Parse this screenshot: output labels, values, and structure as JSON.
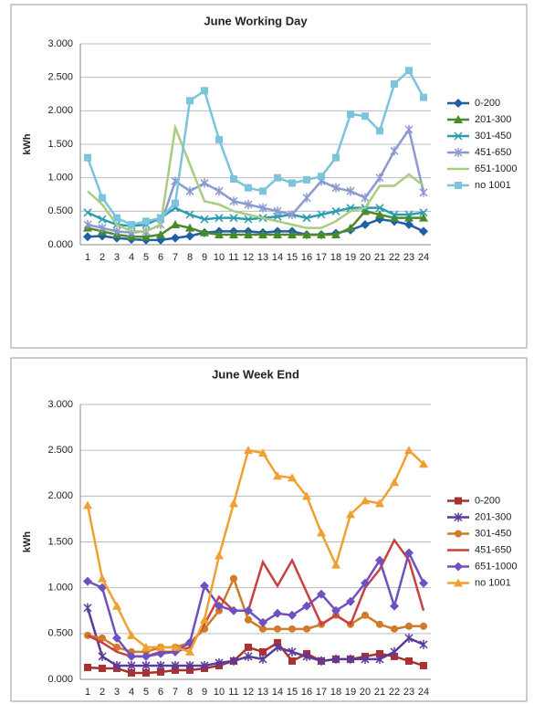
{
  "chart_data": [
    {
      "type": "line",
      "title": "June Working Day",
      "y_label": "kWh",
      "categories": [
        "1",
        "2",
        "3",
        "4",
        "5",
        "6",
        "7",
        "8",
        "9",
        "10",
        "11",
        "12",
        "13",
        "14",
        "15",
        "16",
        "17",
        "18",
        "19",
        "20",
        "21",
        "22",
        "23",
        "24"
      ],
      "ylim": [
        0,
        3
      ],
      "yticks": [
        {
          "value": 0,
          "label": "0.000"
        },
        {
          "value": 0.5,
          "label": "0.500"
        },
        {
          "value": 1,
          "label": "1.000"
        },
        {
          "value": 1.5,
          "label": "1.500"
        },
        {
          "value": 2,
          "label": "2.000"
        },
        {
          "value": 2.5,
          "label": "2.500"
        },
        {
          "value": 3,
          "label": "3.000"
        }
      ],
      "grid": true,
      "legend": "right",
      "series": [
        {
          "name": "0-200",
          "color": "#1f5fa6",
          "marker": "diamond",
          "values": [
            0.12,
            0.13,
            0.1,
            0.08,
            0.07,
            0.07,
            0.1,
            0.13,
            0.18,
            0.2,
            0.2,
            0.2,
            0.18,
            0.2,
            0.2,
            0.15,
            0.15,
            0.17,
            0.22,
            0.3,
            0.38,
            0.35,
            0.3,
            0.2
          ]
        },
        {
          "name": "201-300",
          "color": "#4a8a2a",
          "marker": "triangle",
          "values": [
            0.25,
            0.2,
            0.15,
            0.12,
            0.12,
            0.15,
            0.3,
            0.25,
            0.18,
            0.15,
            0.15,
            0.15,
            0.15,
            0.15,
            0.15,
            0.15,
            0.15,
            0.15,
            0.25,
            0.5,
            0.45,
            0.4,
            0.4,
            0.4
          ]
        },
        {
          "name": "301-450",
          "color": "#2a9bb0",
          "marker": "asterisk",
          "values": [
            0.48,
            0.38,
            0.3,
            0.28,
            0.3,
            0.4,
            0.55,
            0.45,
            0.38,
            0.4,
            0.4,
            0.38,
            0.4,
            0.42,
            0.45,
            0.4,
            0.45,
            0.5,
            0.55,
            0.55,
            0.55,
            0.45,
            0.45,
            0.48
          ]
        },
        {
          "name": "451-650",
          "color": "#8a9ad0",
          "marker": "star",
          "values": [
            0.3,
            0.25,
            0.2,
            0.18,
            0.2,
            0.3,
            0.95,
            0.8,
            0.92,
            0.8,
            0.65,
            0.6,
            0.55,
            0.5,
            0.45,
            0.7,
            0.95,
            0.85,
            0.8,
            0.7,
            1.0,
            1.4,
            1.72,
            0.78
          ]
        },
        {
          "name": "651-1000",
          "color": "#a8cc80",
          "marker": "none",
          "values": [
            0.8,
            0.6,
            0.3,
            0.2,
            0.2,
            0.3,
            1.75,
            1.2,
            0.65,
            0.6,
            0.5,
            0.45,
            0.4,
            0.35,
            0.3,
            0.25,
            0.25,
            0.35,
            0.5,
            0.55,
            0.88,
            0.88,
            1.05,
            0.88
          ]
        },
        {
          "name": "no 1001",
          "color": "#7cc3dc",
          "marker": "square",
          "values": [
            1.3,
            0.7,
            0.4,
            0.3,
            0.35,
            0.4,
            0.62,
            2.15,
            2.3,
            1.57,
            0.98,
            0.85,
            0.8,
            1.0,
            0.92,
            0.97,
            1.02,
            1.3,
            1.95,
            1.92,
            1.7,
            2.4,
            2.6,
            2.2
          ]
        }
      ]
    },
    {
      "type": "line",
      "title": "June Week End",
      "y_label": "kWh",
      "categories": [
        "1",
        "2",
        "3",
        "4",
        "5",
        "6",
        "7",
        "8",
        "9",
        "10",
        "11",
        "12",
        "13",
        "14",
        "15",
        "16",
        "17",
        "18",
        "19",
        "20",
        "21",
        "22",
        "23",
        "24"
      ],
      "ylim": [
        0,
        3
      ],
      "yticks": [
        {
          "value": 0,
          "label": "0.000"
        },
        {
          "value": 0.5,
          "label": "0.500"
        },
        {
          "value": 1,
          "label": "1.000"
        },
        {
          "value": 1.5,
          "label": "1.500"
        },
        {
          "value": 2,
          "label": "2.000"
        },
        {
          "value": 2.5,
          "label": "2.500"
        },
        {
          "value": 3,
          "label": "3.000"
        }
      ],
      "grid": true,
      "legend": "right",
      "series": [
        {
          "name": "0-200",
          "color": "#a83232",
          "marker": "square",
          "values": [
            0.13,
            0.12,
            0.12,
            0.07,
            0.07,
            0.08,
            0.1,
            0.1,
            0.12,
            0.15,
            0.2,
            0.35,
            0.3,
            0.4,
            0.2,
            0.28,
            0.2,
            0.22,
            0.22,
            0.25,
            0.28,
            0.25,
            0.2,
            0.15
          ]
        },
        {
          "name": "201-300",
          "color": "#5a3a9a",
          "marker": "star",
          "values": [
            0.78,
            0.25,
            0.15,
            0.15,
            0.15,
            0.15,
            0.15,
            0.15,
            0.15,
            0.18,
            0.2,
            0.25,
            0.22,
            0.35,
            0.3,
            0.25,
            0.2,
            0.22,
            0.22,
            0.22,
            0.22,
            0.3,
            0.45,
            0.38
          ]
        },
        {
          "name": "301-450",
          "color": "#d07a2a",
          "marker": "circle",
          "values": [
            0.48,
            0.45,
            0.35,
            0.3,
            0.3,
            0.35,
            0.35,
            0.4,
            0.55,
            0.75,
            1.1,
            0.65,
            0.55,
            0.55,
            0.55,
            0.55,
            0.6,
            0.7,
            0.6,
            0.7,
            0.6,
            0.55,
            0.58,
            0.58
          ]
        },
        {
          "name": "451-650",
          "color": "#c84040",
          "marker": "none",
          "values": [
            0.48,
            0.4,
            0.3,
            0.25,
            0.25,
            0.3,
            0.3,
            0.35,
            0.6,
            0.9,
            0.75,
            0.75,
            1.28,
            1.02,
            1.3,
            0.95,
            0.6,
            0.7,
            0.6,
            1.0,
            1.2,
            1.52,
            1.3,
            0.75
          ]
        },
        {
          "name": "651-1000",
          "color": "#7050c0",
          "marker": "diamond",
          "values": [
            1.07,
            1.0,
            0.45,
            0.25,
            0.25,
            0.28,
            0.3,
            0.4,
            1.02,
            0.8,
            0.75,
            0.75,
            0.62,
            0.72,
            0.7,
            0.8,
            0.93,
            0.75,
            0.85,
            1.05,
            1.3,
            0.8,
            1.38,
            1.05
          ]
        },
        {
          "name": "no 1001",
          "color": "#f0a030",
          "marker": "triangle",
          "values": [
            1.9,
            1.1,
            0.8,
            0.48,
            0.35,
            0.35,
            0.35,
            0.3,
            0.65,
            1.35,
            1.92,
            2.5,
            2.47,
            2.22,
            2.2,
            2.0,
            1.6,
            1.25,
            1.8,
            1.95,
            1.92,
            2.15,
            2.5,
            2.35
          ]
        }
      ]
    }
  ]
}
